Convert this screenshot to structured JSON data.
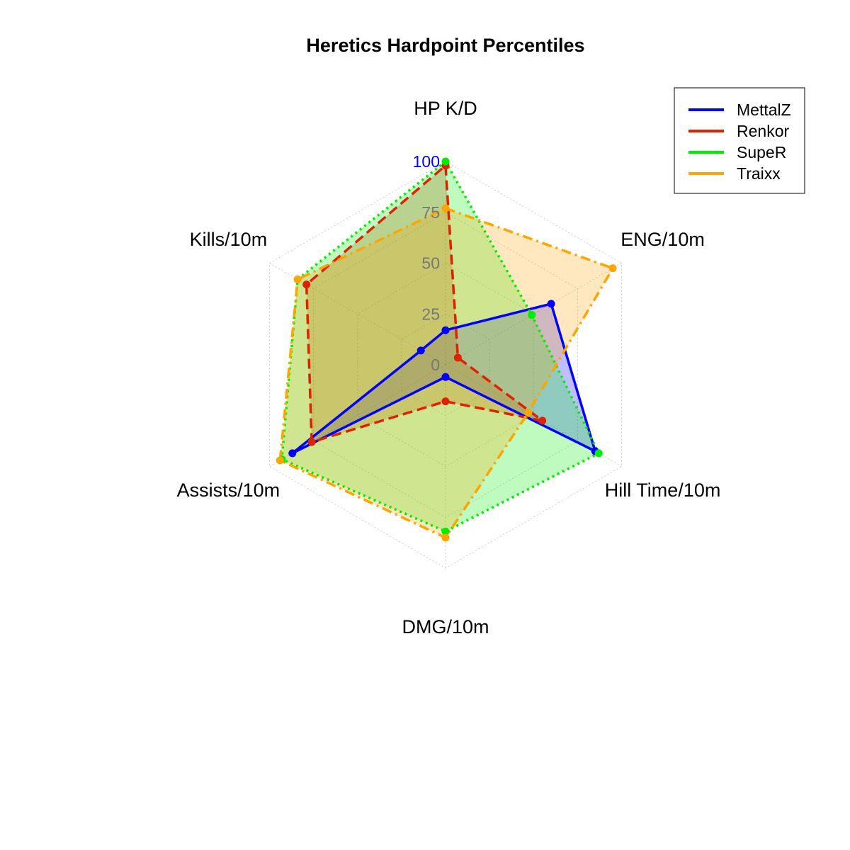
{
  "chart_data": {
    "type": "radar",
    "title": "Heretics Hardpoint Percentiles",
    "axes": [
      "HP K/D",
      "ENG/10m",
      "Hill Time/10m",
      "DMG/10m",
      "Assists/10m",
      "Kills/10m"
    ],
    "ticks": [
      "0",
      "25",
      "50",
      "75",
      "100"
    ],
    "range": [
      0,
      100
    ],
    "grid": true,
    "legend_position": "top-right",
    "series": [
      {
        "name": "MettalZ",
        "color": "#0000FF",
        "fill": "#0000FF",
        "line": "solid",
        "values": [
          17,
          60,
          85,
          6,
          87,
          14
        ]
      },
      {
        "name": "Renkor",
        "color": "#DD2200",
        "fill": "#DD2200",
        "line": "dashed",
        "values": [
          98,
          7,
          55,
          18,
          76,
          79
        ]
      },
      {
        "name": "SupeR",
        "color": "#00EE00",
        "fill": "#00EE00",
        "line": "dotted",
        "values": [
          100,
          49,
          87,
          82,
          93,
          84
        ]
      },
      {
        "name": "Traixx",
        "color": "#FFA500",
        "fill": "#FFA500",
        "line": "dotdash",
        "values": [
          77,
          95,
          47,
          85,
          94,
          84
        ]
      }
    ]
  }
}
